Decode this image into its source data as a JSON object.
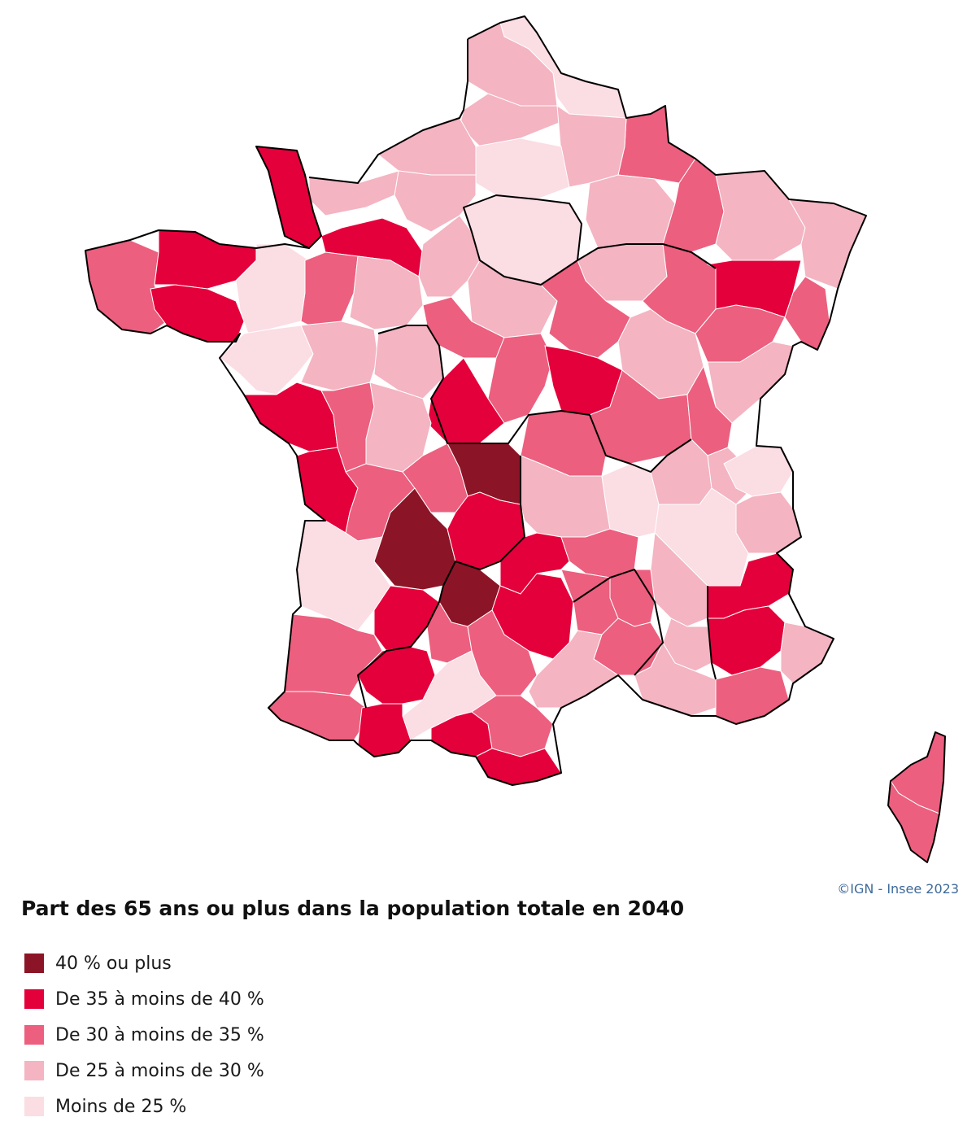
{
  "title": "Part des 65 ans ou plus dans la population totale en 2040",
  "credit": "©IGN - Insee 2023",
  "legend": [
    {
      "label": "40 % ou plus",
      "color": "#8b1526"
    },
    {
      "label": "De 35 à moins de 40 %",
      "color": "#e4003a"
    },
    {
      "label": "De 30 à moins de 35 %",
      "color": "#ec5f7e"
    },
    {
      "label": "De 25 à moins de 30 %",
      "color": "#f4b4c2"
    },
    {
      "label": "Moins de 25 %",
      "color": "#fbdde4"
    }
  ]
}
